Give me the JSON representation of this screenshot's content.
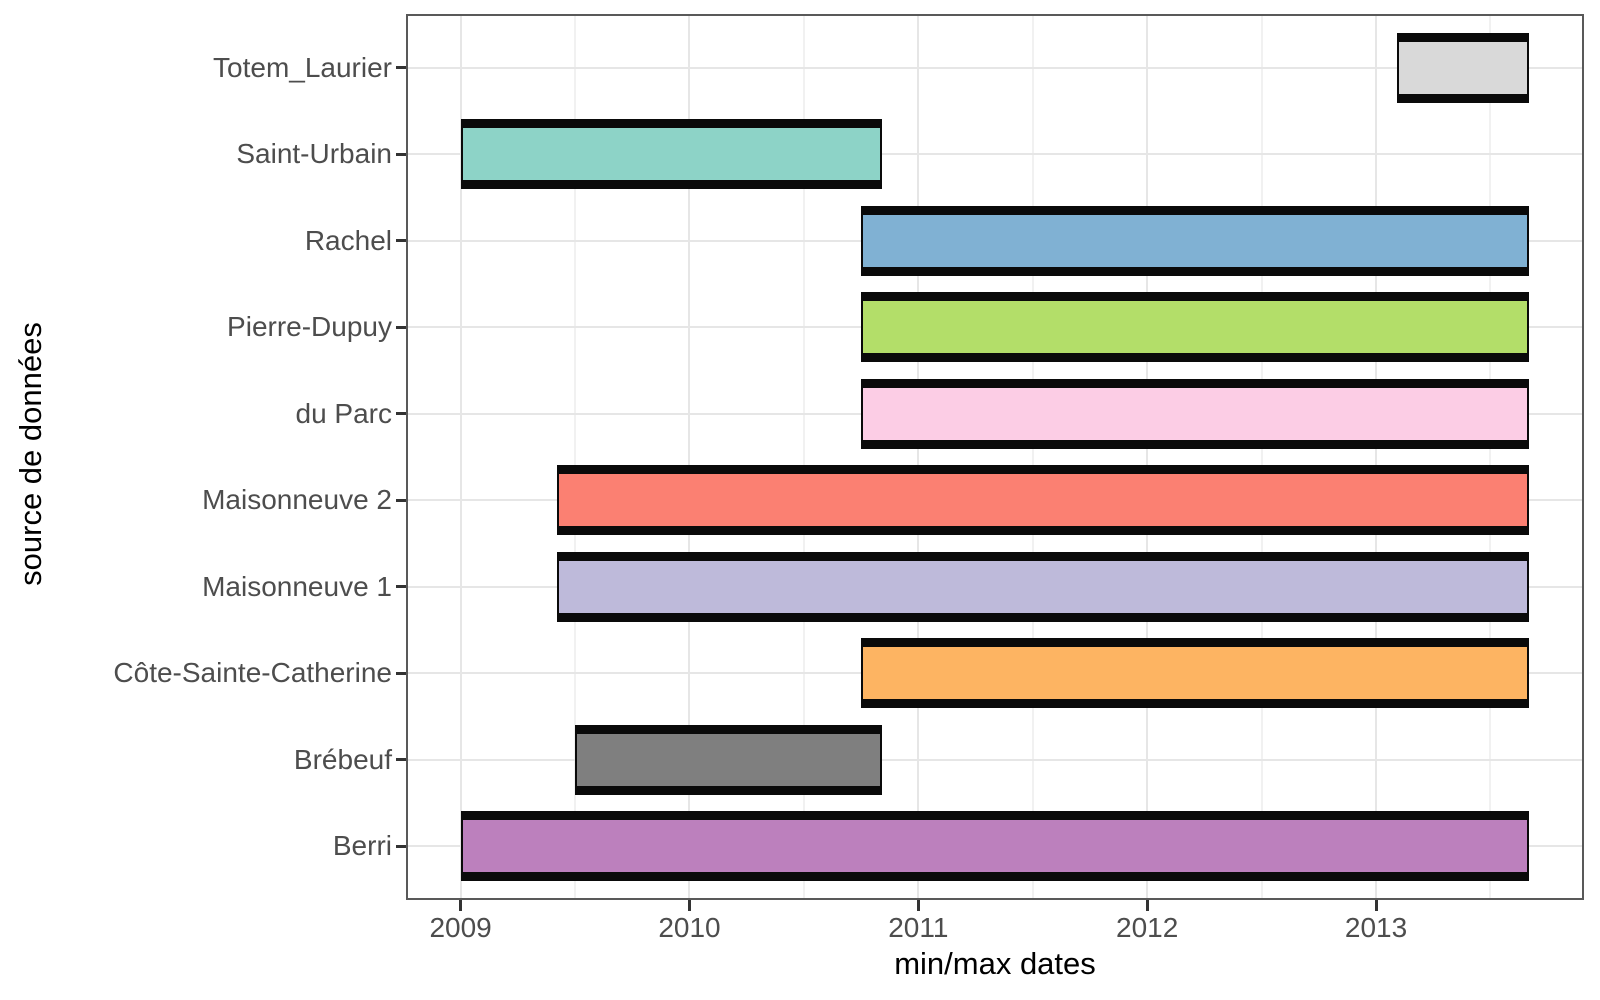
{
  "chart_data": {
    "type": "bar",
    "subtype": "horizontal-range-gantt",
    "title": "",
    "xlabel": "min/max dates",
    "ylabel": "source de données",
    "xlim": [
      2008.77,
      2013.9
    ],
    "x_major_ticks": [
      2009,
      2010,
      2011,
      2012,
      2013
    ],
    "x_minor_ticks": [
      2009.5,
      2010.5,
      2011.5,
      2012.5,
      2013.5
    ],
    "grid": "light gray major+minor vertical, major horizontal at each category",
    "legend_position": "none",
    "bar_outline_color": "#0a0a0a",
    "axis_text_color": "#4d4d4d",
    "axis_title_color": "#000000",
    "panel_border_color": "#595959",
    "series": [
      {
        "name": "Totem_Laurier",
        "start": 2013.09,
        "end": 2013.67,
        "color": "#D9D9D9"
      },
      {
        "name": "Saint-Urbain",
        "start": 2009.0,
        "end": 2010.84,
        "color": "#8DD3C7"
      },
      {
        "name": "Rachel",
        "start": 2010.75,
        "end": 2013.67,
        "color": "#80B1D3"
      },
      {
        "name": "Pierre-Dupuy",
        "start": 2010.75,
        "end": 2013.67,
        "color": "#B3DE69"
      },
      {
        "name": "du Parc",
        "start": 2010.75,
        "end": 2013.67,
        "color": "#FCCDE5"
      },
      {
        "name": "Maisonneuve 2",
        "start": 2009.42,
        "end": 2013.67,
        "color": "#FB8072"
      },
      {
        "name": "Maisonneuve 1",
        "start": 2009.42,
        "end": 2013.67,
        "color": "#BEBADA"
      },
      {
        "name": "Côte-Sainte-Catherine",
        "start": 2010.75,
        "end": 2013.67,
        "color": "#FDB462"
      },
      {
        "name": "Brébeuf",
        "start": 2009.5,
        "end": 2010.84,
        "color": "#7F7F7F"
      },
      {
        "name": "Berri",
        "start": 2009.0,
        "end": 2013.67,
        "color": "#BC80BD"
      }
    ],
    "y_order_note": "series listed top-to-bottom as drawn on the y axis"
  }
}
